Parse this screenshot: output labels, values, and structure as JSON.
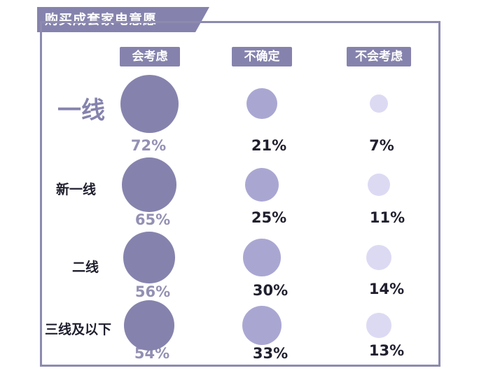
{
  "chart_data": {
    "type": "bubble",
    "title": "购买成套家电意愿",
    "columns": [
      "会考虑",
      "不确定",
      "不会考虑"
    ],
    "rows": [
      {
        "label": "一线",
        "values": [
          "72%",
          "21%",
          "7%"
        ],
        "numbers": [
          72,
          21,
          7
        ]
      },
      {
        "label": "新一线",
        "values": [
          "65%",
          "25%",
          "11%"
        ],
        "numbers": [
          65,
          25,
          11
        ]
      },
      {
        "label": "二线",
        "values": [
          "56%",
          "30%",
          "14%"
        ],
        "numbers": [
          56,
          30,
          14
        ]
      },
      {
        "label": "三线及以下",
        "values": [
          "54%",
          "33%",
          "13%"
        ],
        "numbers": [
          54,
          33,
          13
        ]
      }
    ],
    "colors": [
      "#8583ad",
      "#a9a7d2",
      "#dcdaf3"
    ],
    "frame_color": "#8d8aae"
  }
}
